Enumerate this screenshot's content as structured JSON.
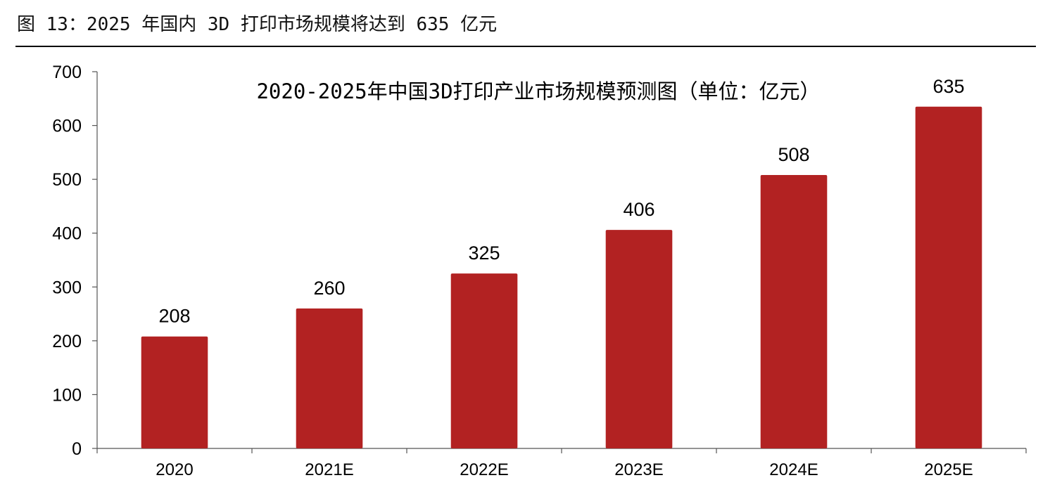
{
  "figure": {
    "caption": "图 13：2025 年国内 3D 打印市场规模将达到 635 亿元"
  },
  "chart_data": {
    "type": "bar",
    "title": "2020-2025年中国3D打印产业市场规模预测图（单位：亿元）",
    "xlabel": "",
    "ylabel": "",
    "categories": [
      "2020",
      "2021E",
      "2022E",
      "2023E",
      "2024E",
      "2025E"
    ],
    "values": [
      208,
      260,
      325,
      406,
      508,
      635
    ],
    "ylim": [
      0,
      700
    ],
    "yticks": [
      0,
      100,
      200,
      300,
      400,
      500,
      600,
      700
    ],
    "bar_color": "#B22222",
    "grid": false,
    "legend": false
  }
}
